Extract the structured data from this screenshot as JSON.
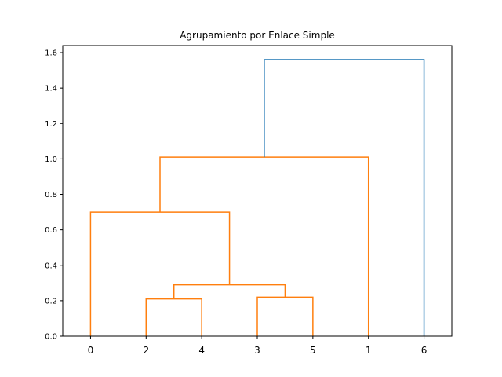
{
  "chart_data": {
    "type": "dendrogram",
    "title": "Agrupamiento por Enlace Simple",
    "xlabel": "",
    "ylabel": "",
    "ylim": [
      0,
      1.64
    ],
    "yticks": [
      0.0,
      0.2,
      0.4,
      0.6,
      0.8,
      1.0,
      1.2,
      1.4,
      1.6
    ],
    "ytick_labels": [
      "0.0",
      "0.2",
      "0.4",
      "0.6",
      "0.8",
      "1.0",
      "1.2",
      "1.4",
      "1.6"
    ],
    "leaves": [
      "0",
      "2",
      "4",
      "3",
      "5",
      "1",
      "6"
    ],
    "links": [
      {
        "left": "2",
        "right": "4",
        "height": 0.21
      },
      {
        "left": "3",
        "right": "5",
        "height": 0.22
      },
      {
        "left": "{2,4}",
        "right": "{3,5}",
        "height": 0.29
      },
      {
        "left": "0",
        "right": "{2,4,3,5}",
        "height": 0.7
      },
      {
        "left": "{0,2,4,3,5}",
        "right": "1",
        "height": 1.01
      },
      {
        "left": "{0,2,4,3,5,1}",
        "right": "6",
        "height": 1.56
      }
    ],
    "colors": {
      "cluster": "#ff7f0e",
      "above_threshold": "#1f77b4",
      "axes": "#000000"
    },
    "grid": false
  }
}
